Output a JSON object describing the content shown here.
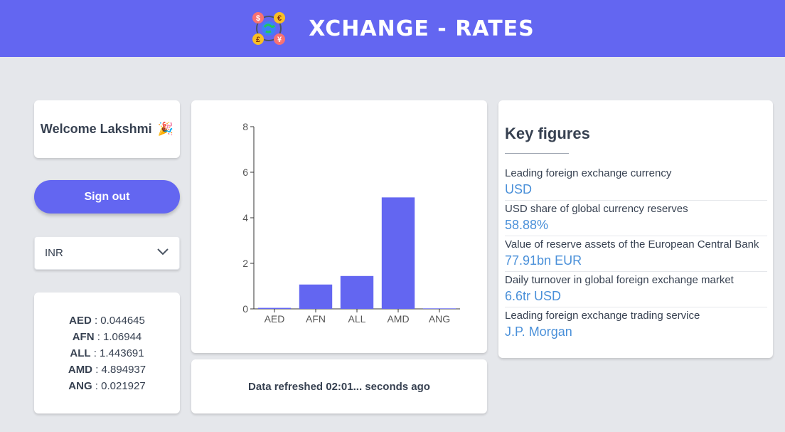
{
  "header": {
    "title": "XCHANGE - RATES",
    "logo_icon": "currency-exchange-logo-icon"
  },
  "welcome": {
    "text": "Welcome Lakshmi",
    "emoji": "🎉"
  },
  "signout_label": "Sign out",
  "currency_select": {
    "value": "INR"
  },
  "rates": [
    {
      "code": "AED",
      "value": "0.044645"
    },
    {
      "code": "AFN",
      "value": "1.06944"
    },
    {
      "code": "ALL",
      "value": "1.443691"
    },
    {
      "code": "AMD",
      "value": "4.894937"
    },
    {
      "code": "ANG",
      "value": "0.021927"
    }
  ],
  "chart_data": {
    "type": "bar",
    "categories": [
      "AED",
      "AFN",
      "ALL",
      "AMD",
      "ANG"
    ],
    "values": [
      0.044645,
      1.06944,
      1.443691,
      4.894937,
      0.021927
    ],
    "yticks": [
      0,
      2,
      4,
      6,
      8
    ],
    "ylim": [
      0,
      8
    ],
    "bar_color": "#6366f1",
    "title": "",
    "xlabel": "",
    "ylabel": ""
  },
  "refresh_text": "Data refreshed 02:01... seconds ago",
  "key_figures": {
    "title": "Key figures",
    "items": [
      {
        "label": "Leading foreign exchange currency",
        "value": "USD"
      },
      {
        "label": "USD share of global currency reserves",
        "value": "58.88%"
      },
      {
        "label": "Value of reserve assets of the European Central Bank",
        "value": "77.91bn EUR"
      },
      {
        "label": "Daily turnover in global foreign exchange market",
        "value": "6.6tr USD"
      },
      {
        "label": "Leading foreign exchange trading service",
        "value": "J.P. Morgan"
      }
    ]
  },
  "colors": {
    "accent": "#6366f1",
    "background": "#e5e7eb",
    "link_value": "#4a90d9"
  }
}
